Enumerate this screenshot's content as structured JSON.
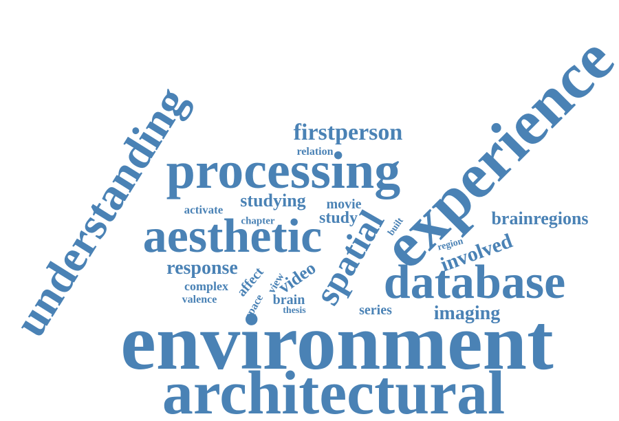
{
  "word_cloud": {
    "color": "#4a82b5",
    "words": [
      {
        "id": "environment",
        "text": "environment"
      },
      {
        "id": "architectural",
        "text": "architectural"
      },
      {
        "id": "experience",
        "text": "experience"
      },
      {
        "id": "processing",
        "text": "processing"
      },
      {
        "id": "aesthetic",
        "text": "aesthetic"
      },
      {
        "id": "database",
        "text": "database"
      },
      {
        "id": "understanding",
        "text": "understanding"
      },
      {
        "id": "spatial",
        "text": "spatial"
      },
      {
        "id": "firstperson",
        "text": "firstperson"
      },
      {
        "id": "brainregions",
        "text": "brainregions"
      },
      {
        "id": "relation",
        "text": "relation"
      },
      {
        "id": "studying",
        "text": "studying"
      },
      {
        "id": "movie",
        "text": "movie"
      },
      {
        "id": "activate",
        "text": "activate"
      },
      {
        "id": "chapter",
        "text": "chapter"
      },
      {
        "id": "study",
        "text": "study"
      },
      {
        "id": "response",
        "text": "response"
      },
      {
        "id": "complex",
        "text": "complex"
      },
      {
        "id": "valence",
        "text": "valence"
      },
      {
        "id": "affect",
        "text": "affect"
      },
      {
        "id": "view",
        "text": "view"
      },
      {
        "id": "space",
        "text": "space"
      },
      {
        "id": "video",
        "text": "video"
      },
      {
        "id": "brain",
        "text": "brain"
      },
      {
        "id": "thesis",
        "text": "thesis"
      },
      {
        "id": "series",
        "text": "series"
      },
      {
        "id": "imaging",
        "text": "imaging"
      },
      {
        "id": "involved",
        "text": "involved"
      },
      {
        "id": "region",
        "text": "region"
      },
      {
        "id": "built",
        "text": "built"
      }
    ]
  }
}
